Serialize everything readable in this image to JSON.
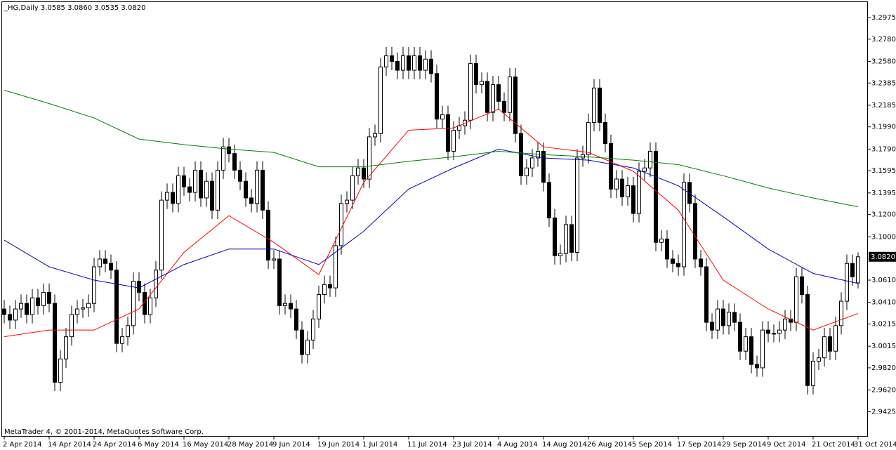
{
  "chart_data": {
    "type": "candlestick",
    "title": "_HG,Daily  3.0585 3.0860 3.0535 3.0820",
    "footer": "MetaTrader 4, © 2001-2014, MetaQuotes Software Corp.",
    "up_color": "#ffffff",
    "down_color": "#000000",
    "ylim": [
      2.92,
      3.312
    ],
    "yticks": [
      {
        "value": 3.2975,
        "label": "3.2975"
      },
      {
        "value": 3.278,
        "label": "3.2780"
      },
      {
        "value": 3.258,
        "label": "3.2580"
      },
      {
        "value": 3.2385,
        "label": "3.2385"
      },
      {
        "value": 3.2185,
        "label": "3.2185"
      },
      {
        "value": 3.199,
        "label": "3.1990"
      },
      {
        "value": 3.179,
        "label": "3.1790"
      },
      {
        "value": 3.1595,
        "label": "3.1595"
      },
      {
        "value": 3.1395,
        "label": "3.1395"
      },
      {
        "value": 3.12,
        "label": "3.1200"
      },
      {
        "value": 3.1,
        "label": "3.1000"
      },
      {
        "value": 3.061,
        "label": "3.0610"
      },
      {
        "value": 3.041,
        "label": "3.0410"
      },
      {
        "value": 3.0215,
        "label": "3.0215"
      },
      {
        "value": 3.0015,
        "label": "3.0015"
      },
      {
        "value": 2.982,
        "label": "2.9820"
      },
      {
        "value": 2.962,
        "label": "2.9620"
      },
      {
        "value": 2.9425,
        "label": "2.9425"
      }
    ],
    "last_price": {
      "value": 3.082,
      "label": "3.0820"
    },
    "categories": [
      "2 Apr 2014",
      null,
      null,
      null,
      null,
      null,
      null,
      null,
      "14 Apr 2014",
      null,
      null,
      null,
      null,
      null,
      null,
      null,
      "24 Apr 2014",
      null,
      null,
      null,
      null,
      null,
      null,
      null,
      "6 May 2014",
      null,
      null,
      null,
      null,
      null,
      null,
      null,
      "16 May 2014",
      null,
      null,
      null,
      null,
      null,
      null,
      null,
      "28 May 2014",
      null,
      null,
      null,
      null,
      null,
      null,
      null,
      "9 Jun 2014",
      null,
      null,
      null,
      null,
      null,
      null,
      null,
      "19 Jun 2014",
      null,
      null,
      null,
      null,
      null,
      null,
      null,
      "1 Jul 2014",
      null,
      null,
      null,
      null,
      null,
      null,
      null,
      "11 Jul 2014",
      null,
      null,
      null,
      null,
      null,
      null,
      null,
      "23 Jul 2014",
      null,
      null,
      null,
      null,
      null,
      null,
      null,
      "4 Aug 2014",
      null,
      null,
      null,
      null,
      null,
      null,
      null,
      "14 Aug 2014",
      null,
      null,
      null,
      null,
      null,
      null,
      null,
      "26 Aug 2014",
      null,
      null,
      null,
      null,
      null,
      null,
      null,
      "5 Sep 2014",
      null,
      null,
      null,
      null,
      null,
      null,
      null,
      "17 Sep 2014",
      null,
      null,
      null,
      null,
      null,
      null,
      null,
      "29 Sep 2014",
      null,
      null,
      null,
      null,
      null,
      null,
      null,
      "9 Oct 2014",
      null,
      null,
      null,
      null,
      null,
      null,
      null,
      "21 Oct 2014",
      null,
      null,
      null,
      null,
      null,
      null,
      null,
      "31 Oct 2014"
    ],
    "candles": [
      [
        3.035,
        3.043,
        3.022,
        3.03
      ],
      [
        3.03,
        3.038,
        3.017,
        3.025
      ],
      [
        3.025,
        3.043,
        3.017,
        3.035
      ],
      [
        3.035,
        3.048,
        3.027,
        3.04
      ],
      [
        3.04,
        3.048,
        3.022,
        3.03
      ],
      [
        3.03,
        3.053,
        3.022,
        3.045
      ],
      [
        3.045,
        3.053,
        3.03,
        3.038
      ],
      [
        3.038,
        3.058,
        3.03,
        3.05
      ],
      [
        3.05,
        3.058,
        3.032,
        3.04
      ],
      [
        3.04,
        3.048,
        2.961,
        2.969
      ],
      [
        2.969,
        2.998,
        2.961,
        2.99
      ],
      [
        2.99,
        3.018,
        2.982,
        3.01
      ],
      [
        3.01,
        3.038,
        3.002,
        3.03
      ],
      [
        3.03,
        3.043,
        3.022,
        3.035
      ],
      [
        3.035,
        3.044,
        3.027,
        3.036
      ],
      [
        3.036,
        3.048,
        3.028,
        3.04
      ],
      [
        3.04,
        3.081,
        3.032,
        3.073
      ],
      [
        3.073,
        3.088,
        3.065,
        3.08
      ],
      [
        3.08,
        3.088,
        3.068,
        3.076
      ],
      [
        3.076,
        3.084,
        3.062,
        3.07
      ],
      [
        3.07,
        3.078,
        2.996,
        3.004
      ],
      [
        3.004,
        3.018,
        2.996,
        3.01
      ],
      [
        3.01,
        3.028,
        3.002,
        3.02
      ],
      [
        3.02,
        3.068,
        3.012,
        3.06
      ],
      [
        3.06,
        3.068,
        3.042,
        3.05
      ],
      [
        3.05,
        3.058,
        3.022,
        3.03
      ],
      [
        3.03,
        3.053,
        3.022,
        3.045
      ],
      [
        3.045,
        3.078,
        3.037,
        3.07
      ],
      [
        3.07,
        3.141,
        3.062,
        3.133
      ],
      [
        3.133,
        3.148,
        3.125,
        3.14
      ],
      [
        3.14,
        3.148,
        3.122,
        3.13
      ],
      [
        3.13,
        3.163,
        3.122,
        3.155
      ],
      [
        3.155,
        3.163,
        3.137,
        3.145
      ],
      [
        3.145,
        3.153,
        3.132,
        3.14
      ],
      [
        3.14,
        3.168,
        3.132,
        3.16
      ],
      [
        3.16,
        3.168,
        3.127,
        3.135
      ],
      [
        3.135,
        3.158,
        3.127,
        3.15
      ],
      [
        3.15,
        3.158,
        3.116,
        3.124
      ],
      [
        3.124,
        3.168,
        3.116,
        3.16
      ],
      [
        3.16,
        3.189,
        3.152,
        3.181
      ],
      [
        3.181,
        3.189,
        3.167,
        3.175
      ],
      [
        3.175,
        3.183,
        3.152,
        3.16
      ],
      [
        3.16,
        3.168,
        3.142,
        3.15
      ],
      [
        3.15,
        3.158,
        3.127,
        3.135
      ],
      [
        3.135,
        3.143,
        3.122,
        3.13
      ],
      [
        3.13,
        3.168,
        3.122,
        3.16
      ],
      [
        3.16,
        3.168,
        3.116,
        3.124
      ],
      [
        3.124,
        3.132,
        3.071,
        3.079
      ],
      [
        3.079,
        3.088,
        3.071,
        3.08
      ],
      [
        3.08,
        3.088,
        3.03,
        3.038
      ],
      [
        3.038,
        3.048,
        3.03,
        3.04
      ],
      [
        3.04,
        3.048,
        3.027,
        3.035
      ],
      [
        3.035,
        3.043,
        3.008,
        3.016
      ],
      [
        3.016,
        3.024,
        2.986,
        2.994
      ],
      [
        2.994,
        3.015,
        2.986,
        3.007
      ],
      [
        3.007,
        3.034,
        2.999,
        3.026
      ],
      [
        3.026,
        3.056,
        3.018,
        3.048
      ],
      [
        3.048,
        3.065,
        3.04,
        3.057
      ],
      [
        3.057,
        3.065,
        3.046,
        3.054
      ],
      [
        3.054,
        3.1,
        3.046,
        3.092
      ],
      [
        3.092,
        3.138,
        3.084,
        3.13
      ],
      [
        3.13,
        3.141,
        3.122,
        3.133
      ],
      [
        3.133,
        3.163,
        3.125,
        3.155
      ],
      [
        3.155,
        3.17,
        3.147,
        3.162
      ],
      [
        3.162,
        3.17,
        3.144,
        3.152
      ],
      [
        3.152,
        3.198,
        3.144,
        3.19
      ],
      [
        3.19,
        3.201,
        3.182,
        3.193
      ],
      [
        3.193,
        3.261,
        3.185,
        3.253
      ],
      [
        3.253,
        3.271,
        3.245,
        3.263
      ],
      [
        3.263,
        3.271,
        3.25,
        3.258
      ],
      [
        3.258,
        3.266,
        3.242,
        3.25
      ],
      [
        3.25,
        3.271,
        3.242,
        3.263
      ],
      [
        3.263,
        3.271,
        3.242,
        3.25
      ],
      [
        3.25,
        3.271,
        3.242,
        3.263
      ],
      [
        3.263,
        3.271,
        3.242,
        3.25
      ],
      [
        3.25,
        3.268,
        3.242,
        3.26
      ],
      [
        3.26,
        3.268,
        3.239,
        3.247
      ],
      [
        3.247,
        3.255,
        3.198,
        3.206
      ],
      [
        3.206,
        3.218,
        3.198,
        3.21
      ],
      [
        3.21,
        3.218,
        3.169,
        3.177
      ],
      [
        3.177,
        3.204,
        3.169,
        3.196
      ],
      [
        3.196,
        3.208,
        3.188,
        3.2
      ],
      [
        3.2,
        3.213,
        3.192,
        3.205
      ],
      [
        3.205,
        3.264,
        3.197,
        3.256
      ],
      [
        3.256,
        3.264,
        3.229,
        3.237
      ],
      [
        3.237,
        3.248,
        3.229,
        3.24
      ],
      [
        3.24,
        3.248,
        3.204,
        3.212
      ],
      [
        3.212,
        3.245,
        3.204,
        3.237
      ],
      [
        3.237,
        3.245,
        3.214,
        3.222
      ],
      [
        3.222,
        3.23,
        3.204,
        3.212
      ],
      [
        3.212,
        3.252,
        3.204,
        3.244
      ],
      [
        3.244,
        3.252,
        3.185,
        3.193
      ],
      [
        3.193,
        3.201,
        3.147,
        3.155
      ],
      [
        3.155,
        3.17,
        3.147,
        3.162
      ],
      [
        3.162,
        3.179,
        3.154,
        3.171
      ],
      [
        3.171,
        3.185,
        3.163,
        3.177
      ],
      [
        3.177,
        3.185,
        3.141,
        3.149
      ],
      [
        3.149,
        3.157,
        3.109,
        3.117
      ],
      [
        3.117,
        3.125,
        3.075,
        3.083
      ],
      [
        3.083,
        3.093,
        3.075,
        3.085
      ],
      [
        3.085,
        3.119,
        3.077,
        3.111
      ],
      [
        3.111,
        3.119,
        3.078,
        3.086
      ],
      [
        3.086,
        3.179,
        3.078,
        3.171
      ],
      [
        3.171,
        3.182,
        3.163,
        3.174
      ],
      [
        3.174,
        3.211,
        3.166,
        3.203
      ],
      [
        3.203,
        3.242,
        3.195,
        3.234
      ],
      [
        3.234,
        3.242,
        3.195,
        3.203
      ],
      [
        3.203,
        3.211,
        3.176,
        3.184
      ],
      [
        3.184,
        3.192,
        3.135,
        3.143
      ],
      [
        3.143,
        3.16,
        3.135,
        3.152
      ],
      [
        3.152,
        3.16,
        3.128,
        3.136
      ],
      [
        3.136,
        3.154,
        3.128,
        3.146
      ],
      [
        3.146,
        3.154,
        3.113,
        3.121
      ],
      [
        3.121,
        3.167,
        3.113,
        3.159
      ],
      [
        3.159,
        3.17,
        3.151,
        3.162
      ],
      [
        3.162,
        3.185,
        3.154,
        3.177
      ],
      [
        3.177,
        3.185,
        3.087,
        3.095
      ],
      [
        3.095,
        3.106,
        3.087,
        3.098
      ],
      [
        3.098,
        3.106,
        3.072,
        3.08
      ],
      [
        3.08,
        3.088,
        3.068,
        3.076
      ],
      [
        3.076,
        3.084,
        3.065,
        3.073
      ],
      [
        3.073,
        3.157,
        3.065,
        3.149
      ],
      [
        3.149,
        3.157,
        3.122,
        3.13
      ],
      [
        3.13,
        3.138,
        3.072,
        3.08
      ],
      [
        3.08,
        3.088,
        3.065,
        3.073
      ],
      [
        3.073,
        3.081,
        3.015,
        3.023
      ],
      [
        3.023,
        3.031,
        3.008,
        3.016
      ],
      [
        3.016,
        3.043,
        3.008,
        3.035
      ],
      [
        3.035,
        3.043,
        3.012,
        3.02
      ],
      [
        3.02,
        3.04,
        3.012,
        3.032
      ],
      [
        3.032,
        3.04,
        3.015,
        3.023
      ],
      [
        3.023,
        3.031,
        2.989,
        2.997
      ],
      [
        2.997,
        3.018,
        2.989,
        3.01
      ],
      [
        3.01,
        3.018,
        2.977,
        2.985
      ],
      [
        2.985,
        2.993,
        2.974,
        2.982
      ],
      [
        2.982,
        3.024,
        2.974,
        3.016
      ],
      [
        3.016,
        3.024,
        3.005,
        3.013
      ],
      [
        3.013,
        3.021,
        3.005,
        3.013
      ],
      [
        3.013,
        3.024,
        3.005,
        3.016
      ],
      [
        3.016,
        3.034,
        3.008,
        3.026
      ],
      [
        3.026,
        3.034,
        3.015,
        3.023
      ],
      [
        3.023,
        3.072,
        3.015,
        3.064
      ],
      [
        3.064,
        3.072,
        3.04,
        3.048
      ],
      [
        3.048,
        3.056,
        2.958,
        2.966
      ],
      [
        2.966,
        2.996,
        2.958,
        2.988
      ],
      [
        2.988,
        2.999,
        2.98,
        2.991
      ],
      [
        2.991,
        3.018,
        2.983,
        3.01
      ],
      [
        3.01,
        3.018,
        2.989,
        2.997
      ],
      [
        2.997,
        3.028,
        2.989,
        3.02
      ],
      [
        3.02,
        3.05,
        3.012,
        3.042
      ],
      [
        3.042,
        3.084,
        3.034,
        3.076
      ],
      [
        3.076,
        3.084,
        3.056,
        3.064
      ],
      [
        3.0585,
        3.086,
        3.0535,
        3.082
      ]
    ],
    "lines": [
      {
        "color": "#ff0000",
        "x": [
          0,
          8,
          16,
          24,
          32,
          40,
          48,
          56,
          64,
          72,
          80,
          88,
          96,
          104,
          112,
          120,
          128,
          136,
          144,
          152
        ],
        "values": [
          3.01,
          3.016,
          3.016,
          3.035,
          3.086,
          3.119,
          3.095,
          3.066,
          3.149,
          3.196,
          3.198,
          3.215,
          3.181,
          3.176,
          3.159,
          3.124,
          3.061,
          3.035,
          3.016,
          3.031
        ]
      },
      {
        "color": "#0000c0",
        "x": [
          0,
          8,
          16,
          24,
          32,
          40,
          48,
          56,
          64,
          72,
          80,
          88,
          96,
          104,
          112,
          120,
          128,
          136,
          144,
          152
        ],
        "values": [
          3.097,
          3.073,
          3.061,
          3.054,
          3.075,
          3.089,
          3.089,
          3.075,
          3.105,
          3.143,
          3.162,
          3.179,
          3.171,
          3.169,
          3.162,
          3.146,
          3.118,
          3.089,
          3.067,
          3.058
        ]
      },
      {
        "color": "#008000",
        "x": [
          0,
          8,
          16,
          24,
          32,
          40,
          48,
          56,
          64,
          72,
          80,
          88,
          96,
          104,
          112,
          120,
          128,
          136,
          144,
          152
        ],
        "values": [
          3.232,
          3.22,
          3.207,
          3.188,
          3.183,
          3.179,
          3.176,
          3.163,
          3.163,
          3.168,
          3.172,
          3.177,
          3.174,
          3.172,
          3.169,
          3.165,
          3.155,
          3.144,
          3.135,
          3.127
        ]
      }
    ]
  }
}
